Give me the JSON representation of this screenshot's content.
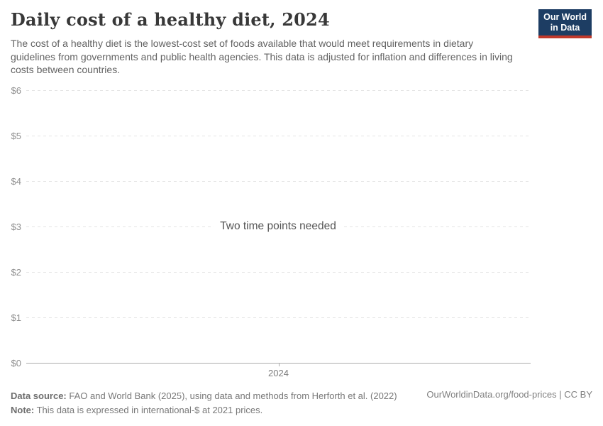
{
  "header": {
    "title": "Daily cost of a healthy diet, 2024",
    "subtitle": "The cost of a healthy diet is the lowest-cost set of foods available that would meet requirements in dietary guidelines from governments and public health agencies. This data is adjusted for inflation and differences in living costs between countries.",
    "logo": {
      "line1": "Our World",
      "line2": "in Data"
    }
  },
  "chart_data": {
    "type": "line",
    "title": "Daily cost of a healthy diet, 2024",
    "series": [],
    "empty_state": true,
    "message": "Two time points needed",
    "xlabel": "",
    "ylabel": "",
    "ylim": [
      0,
      6
    ],
    "y_ticks": [
      {
        "value": 6,
        "label": "$6"
      },
      {
        "value": 5,
        "label": "$5"
      },
      {
        "value": 4,
        "label": "$4"
      },
      {
        "value": 3,
        "label": "$3"
      },
      {
        "value": 2,
        "label": "$2"
      },
      {
        "value": 1,
        "label": "$1"
      },
      {
        "value": 0,
        "label": "$0"
      }
    ],
    "x_ticks": [
      {
        "label": "2024"
      }
    ],
    "grid": "horizontal-dashed",
    "legend": "none"
  },
  "footer": {
    "data_source_label": "Data source:",
    "data_source_text": " FAO and World Bank (2025), using data and methods from Herforth et al. (2022)",
    "note_label": "Note:",
    "note_text": " This data is expressed in international-$ at 2021 prices.",
    "link": "OurWorldinData.org/food-prices | CC BY"
  },
  "colors": {
    "logo_background": "#1d3d63",
    "logo_accent": "#c0392b",
    "title_text": "#383838",
    "subtitle_text": "#636363",
    "gridline": "#e4e4e4",
    "axis_line": "#ababab",
    "tick_label": "#8f8f8f",
    "background": "#ffffff"
  }
}
